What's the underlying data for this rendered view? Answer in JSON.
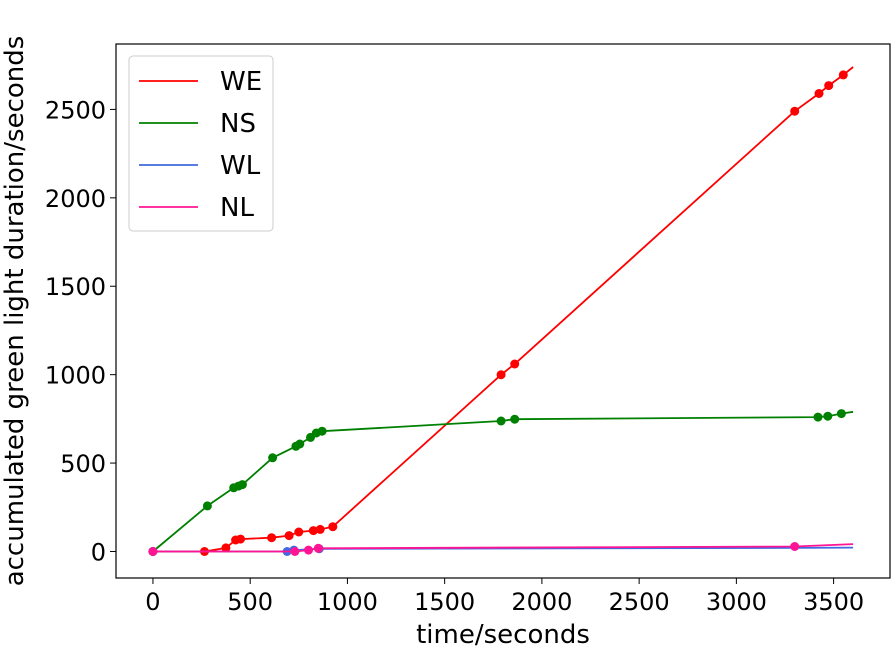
{
  "chart_data": {
    "type": "line",
    "title": "",
    "xlabel": "time/seconds",
    "ylabel": "accumulated green light duration/seconds",
    "xlim": [
      -190,
      3790
    ],
    "ylim": [
      -150,
      2870
    ],
    "xticks": [
      0,
      500,
      1000,
      1500,
      2000,
      2500,
      3000,
      3500
    ],
    "yticks": [
      0,
      500,
      1000,
      1500,
      2000,
      2500
    ],
    "grid": false,
    "legend_position": "top-left",
    "series": [
      {
        "name": "WE",
        "color": "#ff0000",
        "x": [
          0,
          265,
          375,
          425,
          450,
          610,
          700,
          750,
          825,
          860,
          925,
          1790,
          1860,
          3300,
          3425,
          3475,
          3550,
          3600
        ],
        "y": [
          0,
          0,
          20,
          65,
          70,
          78,
          90,
          110,
          118,
          125,
          140,
          1000,
          1060,
          2490,
          2590,
          2635,
          2695,
          2740
        ],
        "markers_x": [
          0,
          265,
          375,
          425,
          450,
          610,
          700,
          750,
          825,
          860,
          925,
          1790,
          1860,
          3300,
          3425,
          3475,
          3550
        ],
        "markers_y": [
          0,
          0,
          20,
          65,
          70,
          78,
          90,
          110,
          118,
          125,
          140,
          1000,
          1060,
          2490,
          2590,
          2635,
          2695
        ]
      },
      {
        "name": "NS",
        "color": "#008000",
        "x": [
          0,
          280,
          415,
          440,
          460,
          615,
          735,
          755,
          810,
          840,
          870,
          1790,
          1860,
          3420,
          3470,
          3540,
          3600
        ],
        "y": [
          0,
          258,
          360,
          370,
          378,
          530,
          595,
          608,
          645,
          670,
          680,
          738,
          748,
          760,
          765,
          780,
          790
        ],
        "markers_x": [
          0,
          280,
          415,
          440,
          460,
          615,
          735,
          755,
          810,
          840,
          870,
          1790,
          1860,
          3420,
          3470,
          3540
        ],
        "markers_y": [
          0,
          258,
          360,
          370,
          378,
          530,
          595,
          608,
          645,
          670,
          680,
          738,
          748,
          760,
          765,
          780
        ]
      },
      {
        "name": "WL",
        "color": "#4169e1",
        "x": [
          0,
          690,
          725,
          855,
          3300,
          3600
        ],
        "y": [
          0,
          0,
          8,
          15,
          20,
          22
        ],
        "markers_x": [
          0,
          690,
          725,
          855
        ],
        "markers_y": [
          0,
          0,
          8,
          15
        ]
      },
      {
        "name": "NL",
        "color": "#ff1493",
        "x": [
          0,
          730,
          800,
          850,
          3300,
          3600
        ],
        "y": [
          0,
          0,
          8,
          18,
          28,
          42
        ],
        "markers_x": [
          0,
          730,
          800,
          850,
          3300
        ],
        "markers_y": [
          0,
          0,
          8,
          18,
          28
        ]
      }
    ]
  }
}
